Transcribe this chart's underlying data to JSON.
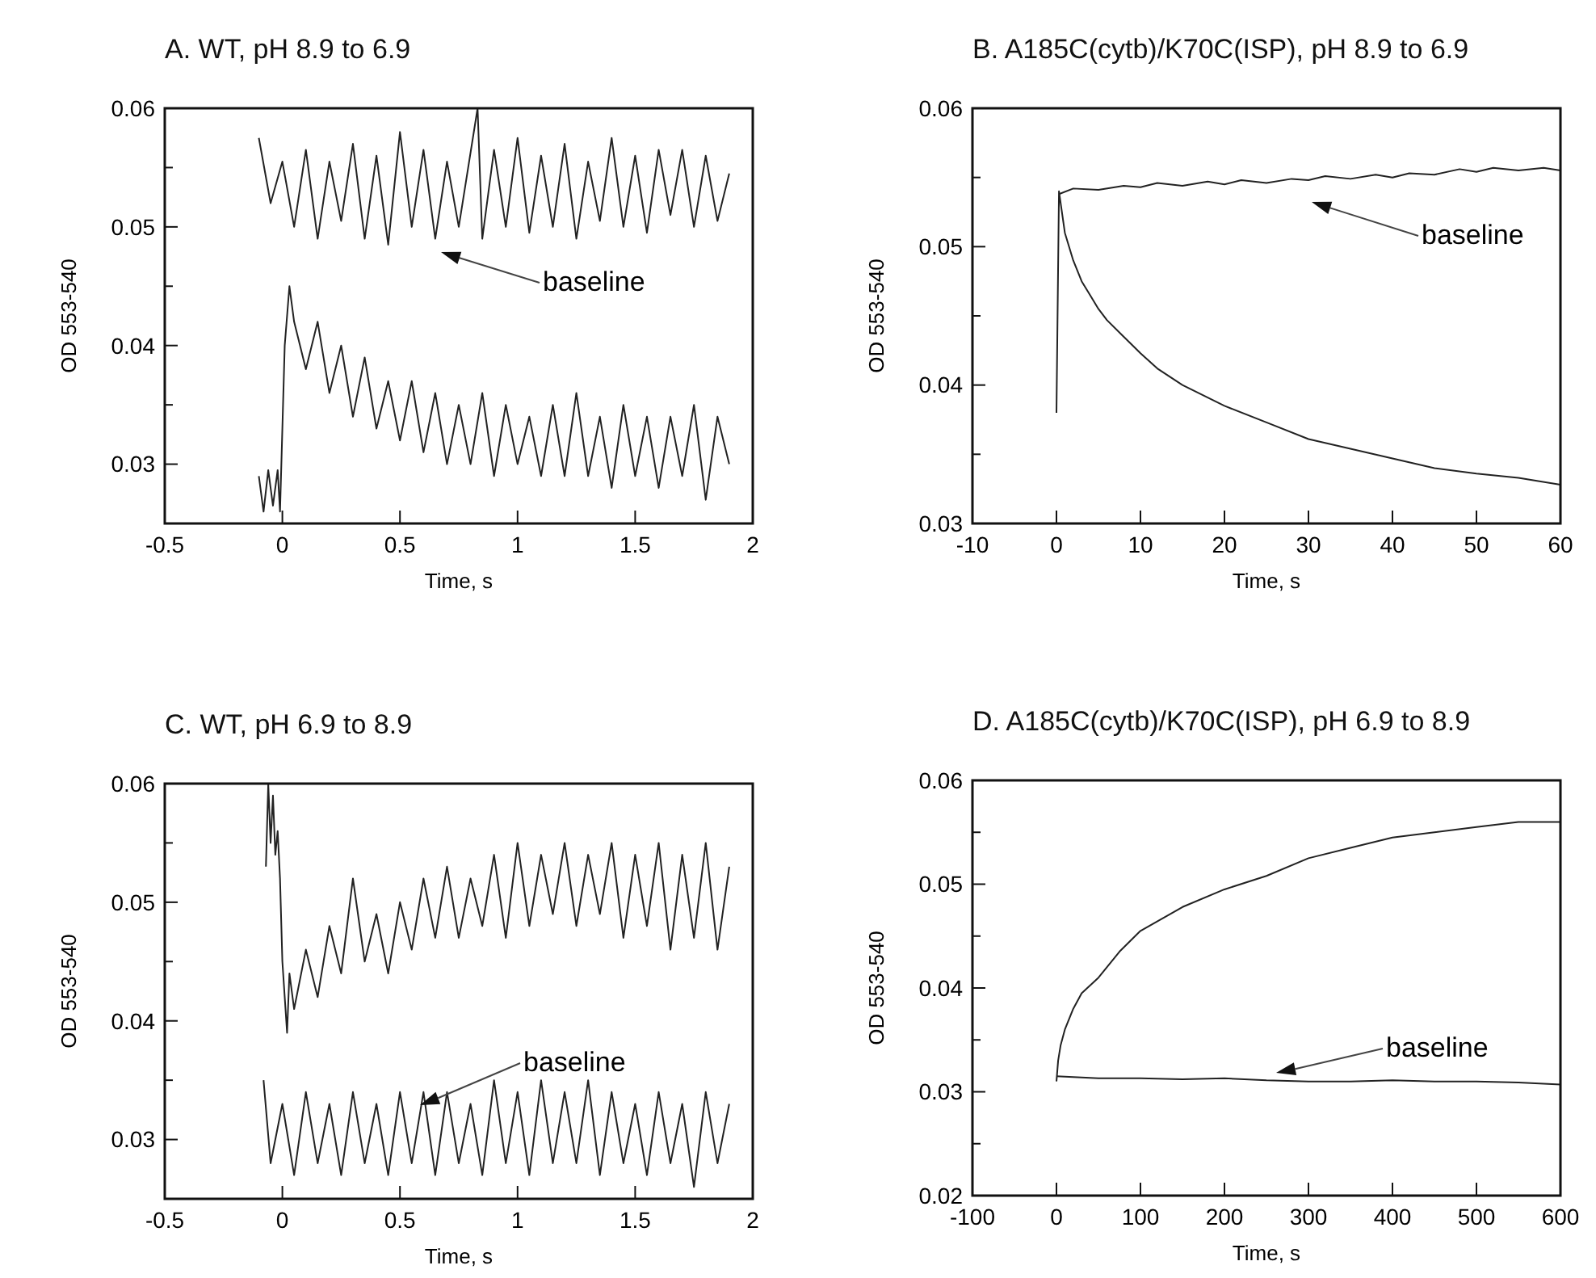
{
  "chart_data": [
    {
      "type": "line",
      "title": "A. WT, pH 8.9 to 6.9",
      "xlabel": "Time, s",
      "ylabel": "OD 553-540",
      "xlim": [
        -0.5,
        2
      ],
      "ylim": [
        0.025,
        0.06
      ],
      "xticks": [
        -0.5,
        0,
        0.5,
        1,
        1.5,
        2
      ],
      "yticks": [
        0.03,
        {
          "value": 0.035,
          "label": null
        },
        0.04,
        {
          "value": 0.045,
          "label": null
        },
        0.05,
        {
          "value": 0.055,
          "label": null
        },
        0.06
      ],
      "grid": false,
      "annotations": [
        "baseline"
      ],
      "series": [
        {
          "color": "#222222",
          "x": [
            -0.1,
            -0.05,
            0,
            0.05,
            0.1,
            0.15,
            0.2,
            0.25,
            0.3,
            0.35,
            0.4,
            0.45,
            0.5,
            0.55,
            0.6,
            0.65,
            0.7,
            0.75,
            0.83,
            0.85,
            0.9,
            0.95,
            1,
            1.05,
            1.1,
            1.15,
            1.2,
            1.25,
            1.3,
            1.35,
            1.4,
            1.45,
            1.5,
            1.55,
            1.6,
            1.65,
            1.7,
            1.75,
            1.8,
            1.85,
            1.9
          ],
          "values": [
            0.0575,
            0.052,
            0.0555,
            0.05,
            0.0565,
            0.049,
            0.0555,
            0.0505,
            0.057,
            0.049,
            0.056,
            0.0485,
            0.058,
            0.05,
            0.0565,
            0.049,
            0.0555,
            0.05,
            0.06,
            0.049,
            0.0565,
            0.05,
            0.0575,
            0.0495,
            0.056,
            0.05,
            0.057,
            0.049,
            0.0555,
            0.0505,
            0.0575,
            0.05,
            0.056,
            0.0495,
            0.0565,
            0.051,
            0.0565,
            0.05,
            0.056,
            0.0505,
            0.0545
          ]
        },
        {
          "color": "#222222",
          "x": [
            -0.1,
            -0.08,
            -0.06,
            -0.04,
            -0.02,
            -0.01,
            0.01,
            0.03,
            0.05,
            0.1,
            0.15,
            0.2,
            0.25,
            0.3,
            0.35,
            0.4,
            0.45,
            0.5,
            0.55,
            0.6,
            0.65,
            0.7,
            0.75,
            0.8,
            0.85,
            0.9,
            0.95,
            1,
            1.05,
            1.1,
            1.15,
            1.2,
            1.25,
            1.3,
            1.35,
            1.4,
            1.45,
            1.5,
            1.55,
            1.6,
            1.65,
            1.7,
            1.75,
            1.8,
            1.85,
            1.9
          ],
          "values": [
            0.029,
            0.026,
            0.0295,
            0.0265,
            0.0295,
            0.026,
            0.04,
            0.045,
            0.042,
            0.038,
            0.042,
            0.036,
            0.04,
            0.034,
            0.039,
            0.033,
            0.037,
            0.032,
            0.037,
            0.031,
            0.036,
            0.03,
            0.035,
            0.03,
            0.036,
            0.029,
            0.035,
            0.03,
            0.034,
            0.029,
            0.035,
            0.029,
            0.036,
            0.029,
            0.034,
            0.028,
            0.035,
            0.029,
            0.034,
            0.028,
            0.034,
            0.029,
            0.035,
            0.027,
            0.034,
            0.03
          ]
        }
      ]
    },
    {
      "type": "line",
      "title": "B. A185C(cytb)/K70C(ISP), pH 8.9 to 6.9",
      "xlabel": "Time, s",
      "ylabel": "OD 553-540",
      "xlim": [
        -10,
        60
      ],
      "ylim": [
        0.03,
        0.06
      ],
      "xticks": [
        -10,
        0,
        10,
        20,
        30,
        40,
        50,
        60
      ],
      "yticks": [
        0.03,
        {
          "value": 0.035,
          "label": null
        },
        0.04,
        {
          "value": 0.045,
          "label": null
        },
        0.05,
        {
          "value": 0.055,
          "label": null
        },
        0.06
      ],
      "grid": false,
      "annotations": [
        "baseline"
      ],
      "series": [
        {
          "color": "#222222",
          "x": [
            0.3,
            2,
            5,
            8,
            10,
            12,
            15,
            18,
            20,
            22,
            25,
            28,
            30,
            32,
            35,
            38,
            40,
            42,
            45,
            48,
            50,
            52,
            55,
            58,
            60
          ],
          "values": [
            0.0538,
            0.0542,
            0.0541,
            0.0544,
            0.0543,
            0.0546,
            0.0544,
            0.0547,
            0.0545,
            0.0548,
            0.0546,
            0.0549,
            0.0548,
            0.0551,
            0.0549,
            0.0552,
            0.055,
            0.0553,
            0.0552,
            0.0556,
            0.0554,
            0.0557,
            0.0555,
            0.0557,
            0.0555
          ]
        },
        {
          "color": "#222222",
          "x": [
            0,
            0.3,
            1,
            2,
            3,
            4,
            5,
            6,
            8,
            10,
            12,
            15,
            20,
            25,
            30,
            35,
            40,
            45,
            50,
            55,
            60
          ],
          "values": [
            0.038,
            0.054,
            0.051,
            0.049,
            0.0475,
            0.0465,
            0.0455,
            0.0447,
            0.0435,
            0.0423,
            0.0412,
            0.04,
            0.0385,
            0.0373,
            0.0361,
            0.0354,
            0.0347,
            0.034,
            0.0336,
            0.0333,
            0.0328
          ]
        }
      ]
    },
    {
      "type": "line",
      "title": "C. WT, pH 6.9 to 8.9",
      "xlabel": "Time, s",
      "ylabel": "OD 553-540",
      "xlim": [
        -0.5,
        2
      ],
      "ylim": [
        0.025,
        0.06
      ],
      "xticks": [
        -0.5,
        0,
        0.5,
        1,
        1.5,
        2
      ],
      "yticks": [
        0.03,
        {
          "value": 0.035,
          "label": null
        },
        0.04,
        {
          "value": 0.045,
          "label": null
        },
        0.05,
        {
          "value": 0.055,
          "label": null
        },
        0.06
      ],
      "grid": false,
      "annotations": [
        "baseline"
      ],
      "series": [
        {
          "color": "#222222",
          "x": [
            -0.07,
            -0.06,
            -0.05,
            -0.04,
            -0.03,
            -0.02,
            -0.01,
            0,
            0.02,
            0.03,
            0.05,
            0.1,
            0.15,
            0.2,
            0.25,
            0.3,
            0.35,
            0.4,
            0.45,
            0.5,
            0.55,
            0.6,
            0.65,
            0.7,
            0.75,
            0.8,
            0.85,
            0.9,
            0.95,
            1,
            1.05,
            1.1,
            1.15,
            1.2,
            1.25,
            1.3,
            1.35,
            1.4,
            1.45,
            1.5,
            1.55,
            1.6,
            1.65,
            1.7,
            1.75,
            1.8,
            1.85,
            1.9
          ],
          "values": [
            0.053,
            0.06,
            0.055,
            0.059,
            0.054,
            0.056,
            0.052,
            0.045,
            0.039,
            0.044,
            0.041,
            0.046,
            0.042,
            0.048,
            0.044,
            0.052,
            0.045,
            0.049,
            0.044,
            0.05,
            0.046,
            0.052,
            0.047,
            0.053,
            0.047,
            0.052,
            0.048,
            0.054,
            0.047,
            0.055,
            0.048,
            0.054,
            0.049,
            0.055,
            0.048,
            0.054,
            0.049,
            0.055,
            0.047,
            0.054,
            0.048,
            0.055,
            0.046,
            0.054,
            0.047,
            0.055,
            0.046,
            0.053
          ]
        },
        {
          "color": "#222222",
          "x": [
            -0.08,
            -0.05,
            0,
            0.05,
            0.1,
            0.15,
            0.2,
            0.25,
            0.3,
            0.35,
            0.4,
            0.45,
            0.5,
            0.55,
            0.6,
            0.65,
            0.7,
            0.75,
            0.8,
            0.85,
            0.9,
            0.95,
            1,
            1.05,
            1.1,
            1.15,
            1.2,
            1.25,
            1.3,
            1.35,
            1.4,
            1.45,
            1.5,
            1.55,
            1.6,
            1.65,
            1.7,
            1.75,
            1.8,
            1.85,
            1.9
          ],
          "values": [
            0.035,
            0.028,
            0.033,
            0.027,
            0.034,
            0.028,
            0.033,
            0.027,
            0.034,
            0.028,
            0.033,
            0.027,
            0.034,
            0.028,
            0.034,
            0.027,
            0.034,
            0.028,
            0.033,
            0.027,
            0.035,
            0.028,
            0.034,
            0.027,
            0.035,
            0.028,
            0.034,
            0.028,
            0.035,
            0.027,
            0.034,
            0.028,
            0.033,
            0.027,
            0.034,
            0.028,
            0.033,
            0.026,
            0.034,
            0.028,
            0.033
          ]
        }
      ]
    },
    {
      "type": "line",
      "title": "D. A185C(cytb)/K70C(ISP), pH 6.9 to 8.9",
      "xlabel": "Time, s",
      "ylabel": "OD 553-540",
      "xlim": [
        -100,
        600
      ],
      "ylim": [
        0.02,
        0.06
      ],
      "xticks": [
        -100,
        0,
        100,
        200,
        300,
        400,
        500,
        600
      ],
      "yticks": [
        0.02,
        {
          "value": 0.025,
          "label": null
        },
        0.03,
        {
          "value": 0.035,
          "label": null
        },
        0.04,
        {
          "value": 0.045,
          "label": null
        },
        0.05,
        {
          "value": 0.055,
          "label": null
        },
        0.06
      ],
      "grid": false,
      "annotations": [
        "baseline"
      ],
      "series": [
        {
          "color": "#222222",
          "x": [
            0,
            2,
            5,
            10,
            20,
            30,
            50,
            75,
            100,
            150,
            200,
            250,
            300,
            350,
            400,
            450,
            500,
            550,
            600
          ],
          "values": [
            0.031,
            0.033,
            0.0345,
            0.036,
            0.038,
            0.0395,
            0.041,
            0.0435,
            0.0455,
            0.0478,
            0.0495,
            0.0508,
            0.0525,
            0.0535,
            0.0545,
            0.055,
            0.0555,
            0.056,
            0.056
          ]
        },
        {
          "color": "#222222",
          "x": [
            0,
            50,
            100,
            150,
            200,
            250,
            300,
            350,
            400,
            450,
            500,
            550,
            600
          ],
          "values": [
            0.0315,
            0.0313,
            0.0313,
            0.0312,
            0.0313,
            0.0311,
            0.031,
            0.031,
            0.0311,
            0.031,
            0.031,
            0.0309,
            0.0307
          ]
        }
      ]
    }
  ]
}
